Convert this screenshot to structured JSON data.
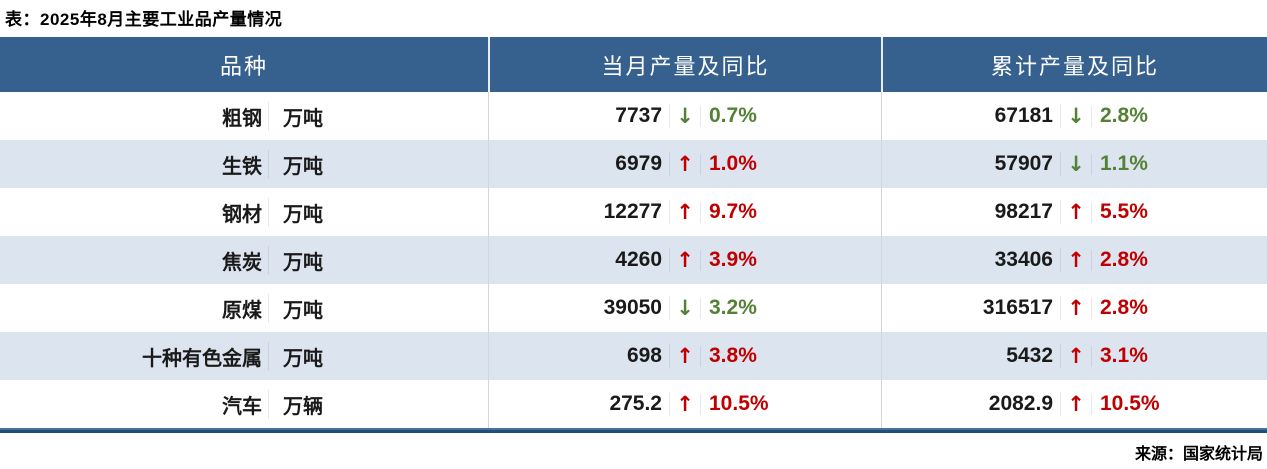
{
  "title": "表：2025年8月主要工业品产量情况",
  "source": "来源：国家统计局",
  "icons": {
    "up_arrow": "↑",
    "down_arrow": "↓"
  },
  "colors": {
    "header_bg": "#36618F",
    "row_alt_bg": "#DCE4EF",
    "up_red": "#C00000",
    "down_green": "#538135",
    "border_navy": "#1F4E79"
  },
  "chart_data": {
    "type": "table",
    "title": "表：2025年8月主要工业品产量情况",
    "columns": [
      "品种",
      "当月产量及同比",
      "累计产量及同比"
    ],
    "rows": [
      {
        "name": "粗钢",
        "unit": "万吨",
        "month_value": "7737",
        "month_dir": "down",
        "month_pct": "0.7%",
        "cum_value": "67181",
        "cum_dir": "down",
        "cum_pct": "2.8%"
      },
      {
        "name": "生铁",
        "unit": "万吨",
        "month_value": "6979",
        "month_dir": "up",
        "month_pct": "1.0%",
        "cum_value": "57907",
        "cum_dir": "down",
        "cum_pct": "1.1%"
      },
      {
        "name": "钢材",
        "unit": "万吨",
        "month_value": "12277",
        "month_dir": "up",
        "month_pct": "9.7%",
        "cum_value": "98217",
        "cum_dir": "up",
        "cum_pct": "5.5%"
      },
      {
        "name": "焦炭",
        "unit": "万吨",
        "month_value": "4260",
        "month_dir": "up",
        "month_pct": "3.9%",
        "cum_value": "33406",
        "cum_dir": "up",
        "cum_pct": "2.8%"
      },
      {
        "name": "原煤",
        "unit": "万吨",
        "month_value": "39050",
        "month_dir": "down",
        "month_pct": "3.2%",
        "cum_value": "316517",
        "cum_dir": "up",
        "cum_pct": "2.8%"
      },
      {
        "name": "十种有色金属",
        "unit": "万吨",
        "month_value": "698",
        "month_dir": "up",
        "month_pct": "3.8%",
        "cum_value": "5432",
        "cum_dir": "up",
        "cum_pct": "3.1%"
      },
      {
        "name": "汽车",
        "unit": "万辆",
        "month_value": "275.2",
        "month_dir": "up",
        "month_pct": "10.5%",
        "cum_value": "2082.9",
        "cum_dir": "up",
        "cum_pct": "10.5%"
      }
    ]
  }
}
